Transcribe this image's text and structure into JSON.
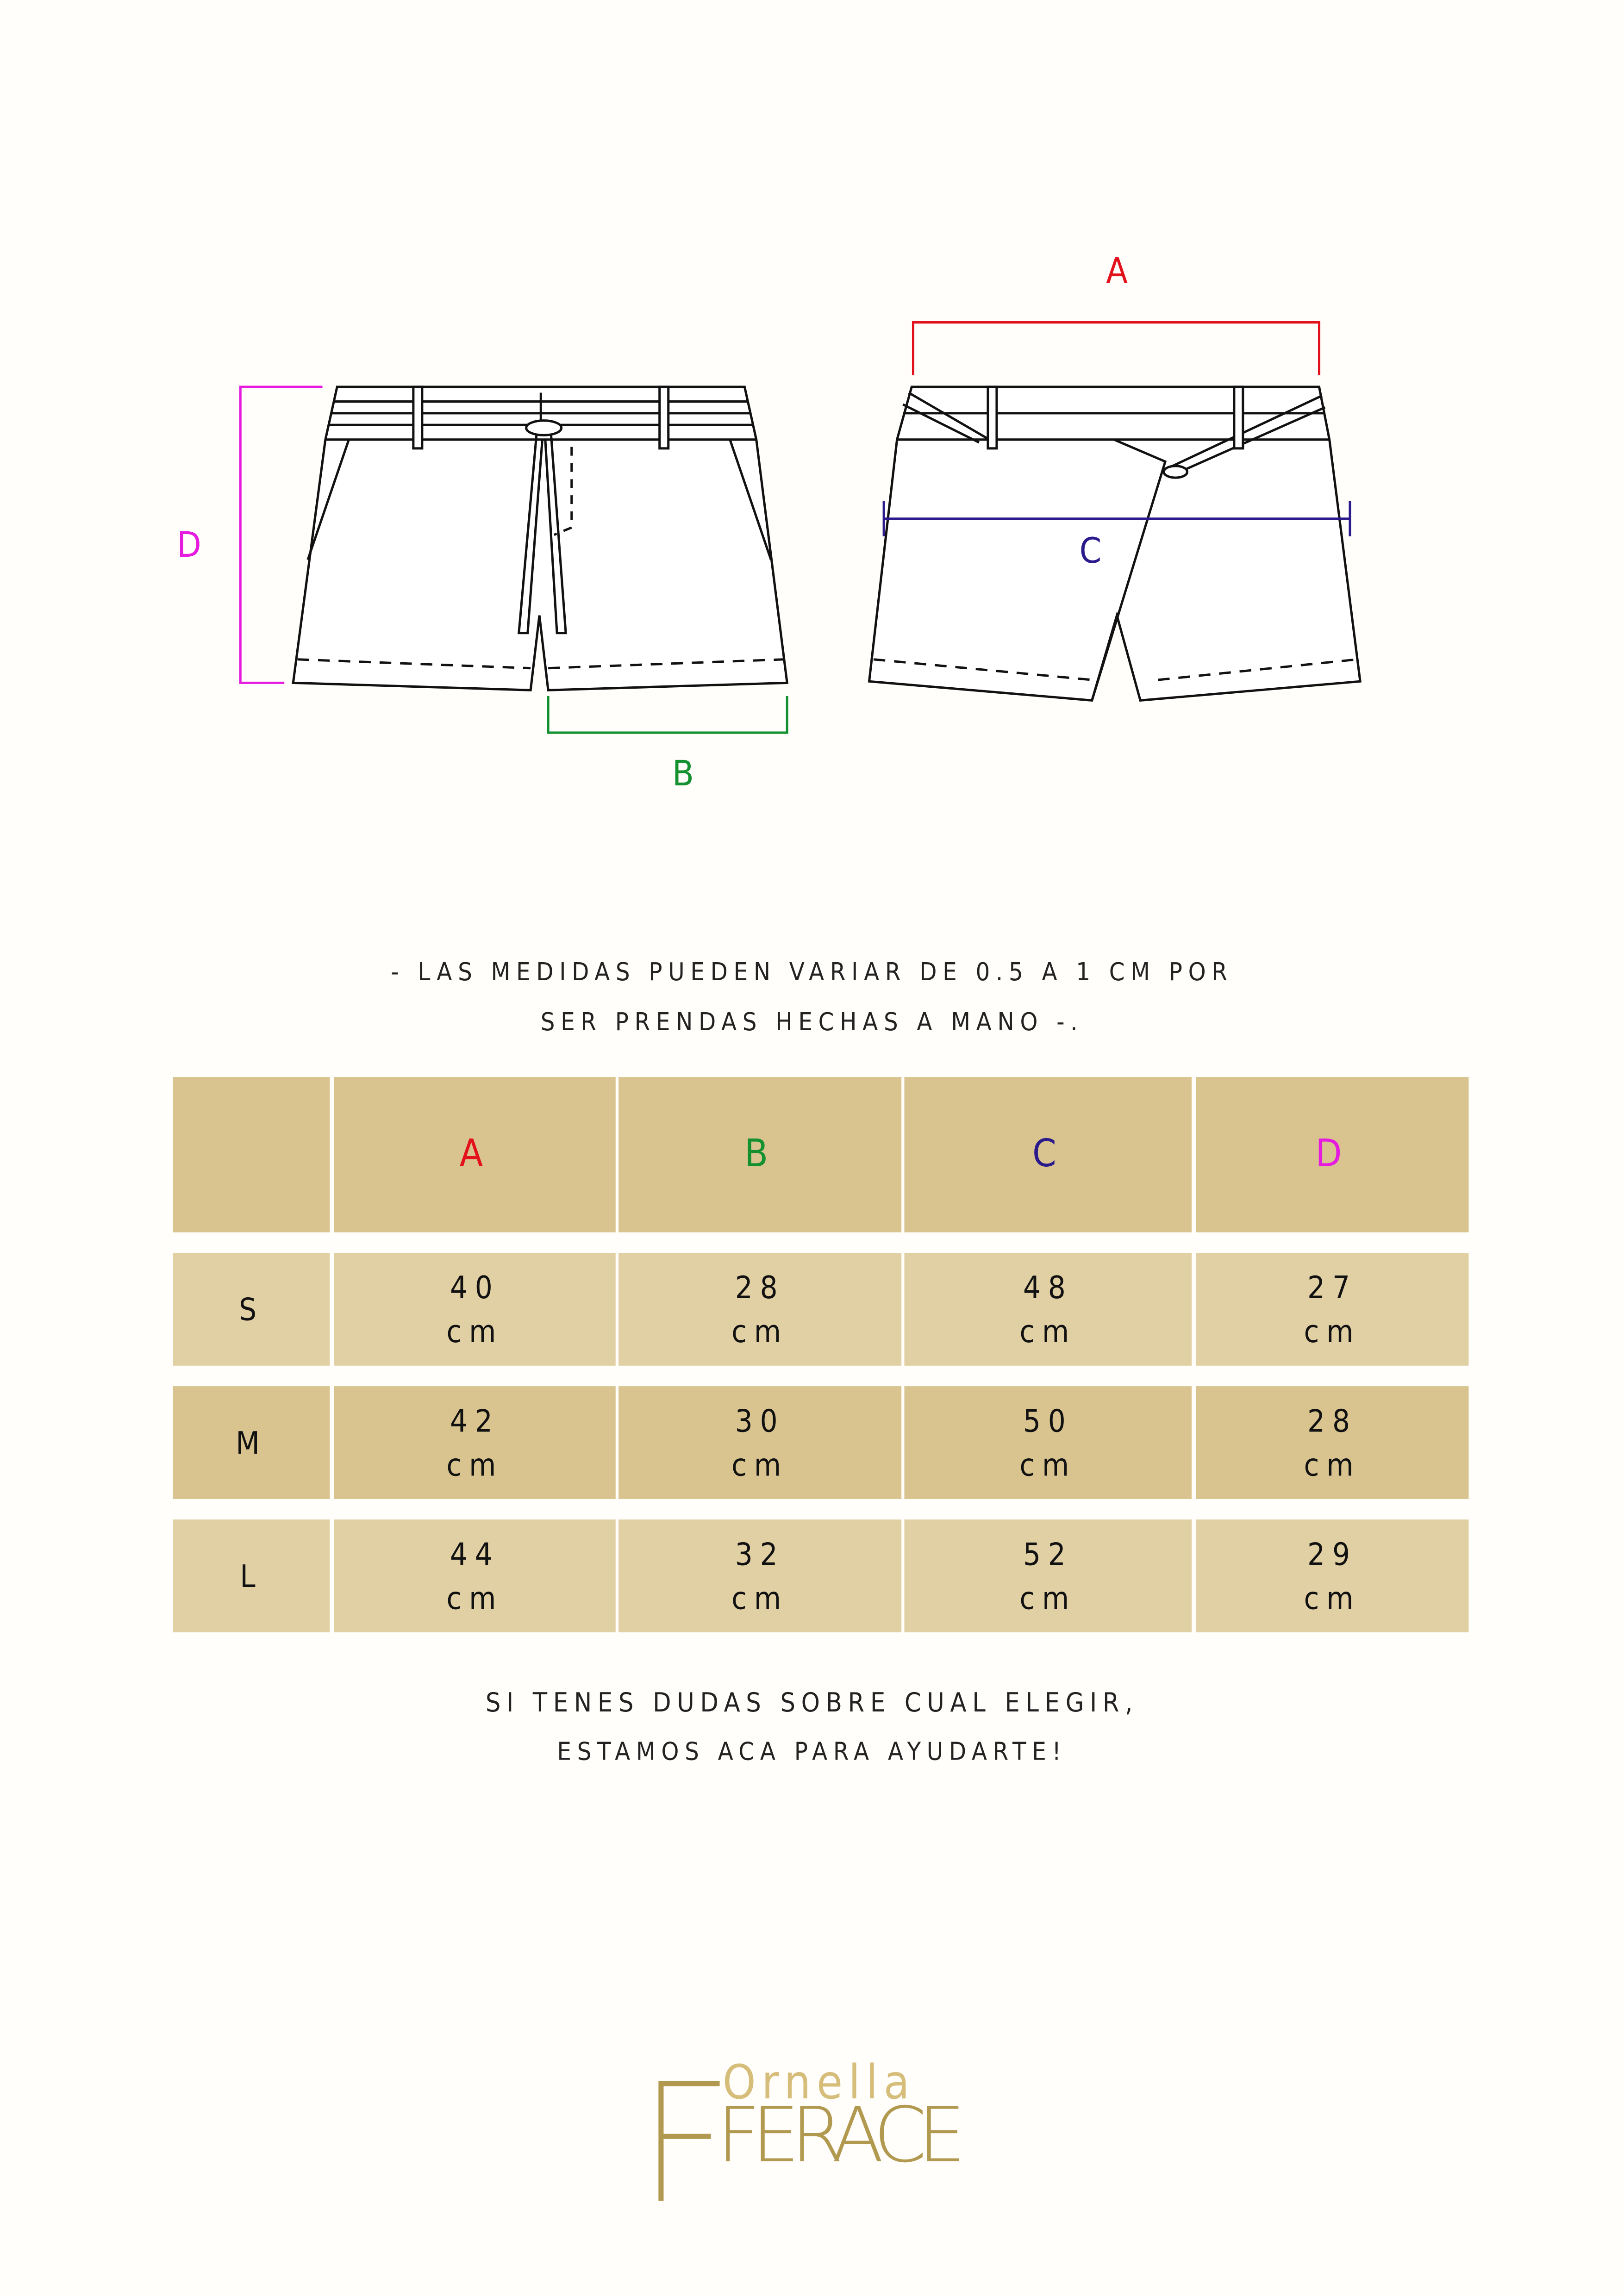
{
  "diagram": {
    "labels": {
      "A": "A",
      "B": "B",
      "C": "C",
      "D": "D"
    },
    "colors": {
      "A": "#e3111b",
      "B": "#13902f",
      "C": "#2a1a8c",
      "D": "#e51ce0"
    }
  },
  "note": {
    "line1": "- LAS MEDIDAS PUEDEN VARIAR DE 0.5 A 1 CM POR",
    "line2": "SER PRENDAS HECHAS A MANO -."
  },
  "table": {
    "headers": [
      "",
      "A",
      "B",
      "C",
      "D"
    ],
    "rows": [
      {
        "size": "S",
        "values": [
          "40",
          "28",
          "48",
          "27"
        ],
        "unit": "cm"
      },
      {
        "size": "M",
        "values": [
          "42",
          "30",
          "50",
          "28"
        ],
        "unit": "cm"
      },
      {
        "size": "L",
        "values": [
          "44",
          "32",
          "52",
          "29"
        ],
        "unit": "cm"
      }
    ],
    "colors": {
      "header": "#d9c48f",
      "row_light": "#e2d0a5",
      "row_dark": "#d9c48f"
    }
  },
  "footer": {
    "line1": "SI TENES DUDAS SOBRE CUAL ELEGIR,",
    "line2": "ESTAMOS ACA PARA AYUDARTE!"
  },
  "logo": {
    "top": "Ornella",
    "bottom": "FERACE",
    "color": "#b19a50"
  }
}
